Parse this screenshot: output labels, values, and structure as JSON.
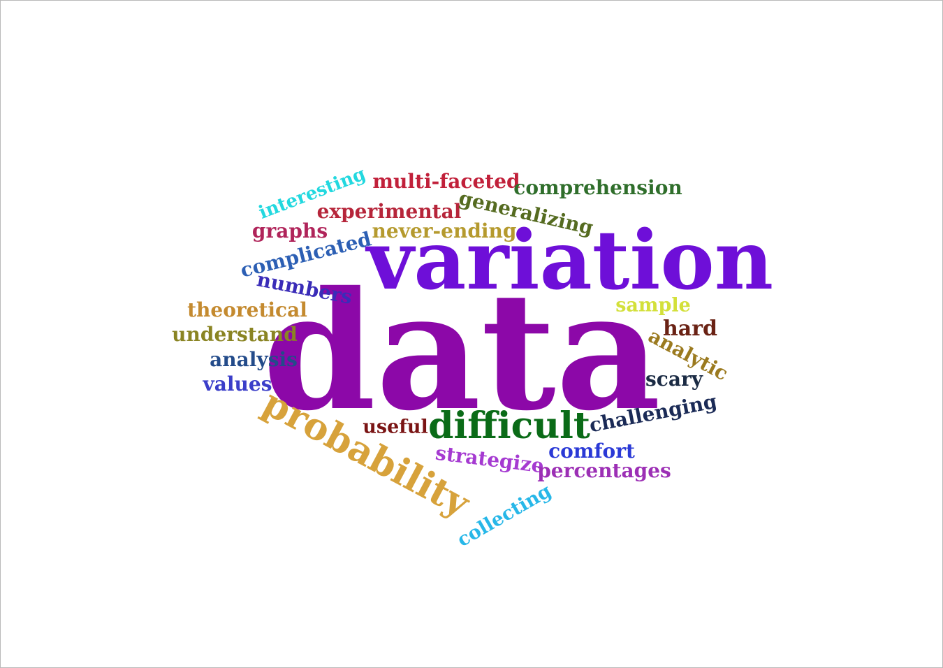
{
  "words": [
    {
      "text": "data",
      "color": "#8c08a8"
    },
    {
      "text": "variation",
      "color": "#6e0fd8"
    },
    {
      "text": "probability",
      "color": "#d7a23b"
    },
    {
      "text": "difficult",
      "color": "#0a6b17"
    },
    {
      "text": "interesting",
      "color": "#22d8df"
    },
    {
      "text": "multi-faceted",
      "color": "#c1203a"
    },
    {
      "text": "comprehension",
      "color": "#2f6e2b"
    },
    {
      "text": "experimental",
      "color": "#b6253a"
    },
    {
      "text": "generalizing",
      "color": "#556b20"
    },
    {
      "text": "graphs",
      "color": "#b0245a"
    },
    {
      "text": "never-ending",
      "color": "#b59a2e"
    },
    {
      "text": "complicated",
      "color": "#2c5fb4"
    },
    {
      "text": "numbers",
      "color": "#3a2cb8"
    },
    {
      "text": "theoretical",
      "color": "#c48a2f"
    },
    {
      "text": "sample",
      "color": "#d3e03a"
    },
    {
      "text": "hard",
      "color": "#6a2214"
    },
    {
      "text": "understand",
      "color": "#8a8423"
    },
    {
      "text": "analytic",
      "color": "#9b7a1f"
    },
    {
      "text": "analysis",
      "color": "#234b8a"
    },
    {
      "text": "scary",
      "color": "#1b2b44"
    },
    {
      "text": "values",
      "color": "#3b3ec9"
    },
    {
      "text": "challenging",
      "color": "#1a2a56"
    },
    {
      "text": "useful",
      "color": "#7a1414"
    },
    {
      "text": "comfort",
      "color": "#2a39d6"
    },
    {
      "text": "strategize",
      "color": "#a53ad1"
    },
    {
      "text": "percentages",
      "color": "#9c2fb5"
    },
    {
      "text": "collecting",
      "color": "#27b7e8"
    }
  ]
}
